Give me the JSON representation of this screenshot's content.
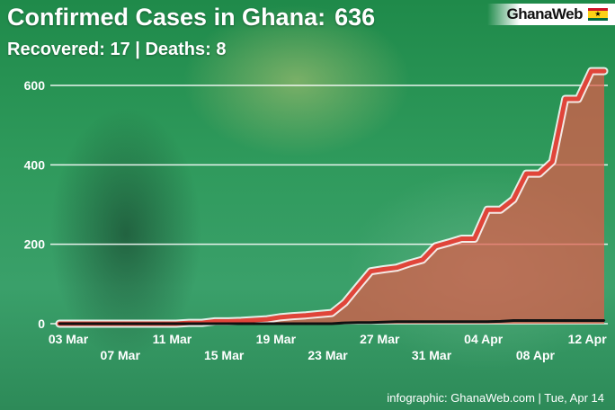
{
  "header": {
    "title": "Confirmed Cases in Ghana:",
    "title_value": "636",
    "subtitle": "Recovered: 17  |  Deaths: 8"
  },
  "brand": {
    "name": "GhanaWeb",
    "icon": "ghana-flag-icon"
  },
  "footer": {
    "credit": "infographic: GhanaWeb.com  |  Tue, Apr 14"
  },
  "colors": {
    "cases_line": "#e0453a",
    "cases_fill": "#e05a4a",
    "deaths_line": "#111111",
    "grid": "#ffffff"
  },
  "chart_data": {
    "type": "area",
    "x": [
      "03 Mar",
      "04 Mar",
      "05 Mar",
      "06 Mar",
      "07 Mar",
      "08 Mar",
      "09 Mar",
      "10 Mar",
      "11 Mar",
      "12 Mar",
      "13 Mar",
      "14 Mar",
      "15 Mar",
      "16 Mar",
      "17 Mar",
      "18 Mar",
      "19 Mar",
      "20 Mar",
      "21 Mar",
      "22 Mar",
      "23 Mar",
      "24 Mar",
      "25 Mar",
      "26 Mar",
      "27 Mar",
      "28 Mar",
      "29 Mar",
      "30 Mar",
      "31 Mar",
      "01 Apr",
      "02 Apr",
      "03 Apr",
      "04 Apr",
      "05 Apr",
      "06 Apr",
      "07 Apr",
      "08 Apr",
      "09 Apr",
      "10 Apr",
      "11 Apr",
      "12 Apr",
      "13 Apr",
      "14 Apr"
    ],
    "tick_labels_row1": [
      "03 Mar",
      "11 Mar",
      "19 Mar",
      "27 Mar",
      "04 Apr",
      "12 Apr"
    ],
    "tick_labels_row2": [
      "07 Mar",
      "15 Mar",
      "23 Mar",
      "31 Mar",
      "08 Apr"
    ],
    "yticks": [
      0,
      200,
      400,
      600
    ],
    "ylim": [
      0,
      650
    ],
    "grid": true,
    "series": [
      {
        "values": [
          0,
          0,
          0,
          0,
          0,
          0,
          0,
          0,
          0,
          0,
          2,
          2,
          6,
          6,
          7,
          9,
          11,
          16,
          19,
          21,
          24,
          27,
          53,
          93,
          132,
          137,
          141,
          152,
          161,
          195,
          204,
          214,
          214,
          287,
          287,
          313,
          378,
          378,
          408,
          566,
          566,
          636,
          636
        ]
      },
      {
        "values": [
          0,
          0,
          0,
          0,
          0,
          0,
          0,
          0,
          0,
          0,
          0,
          0,
          0,
          0,
          0,
          0,
          0,
          0,
          0,
          0,
          0,
          0,
          2,
          3,
          3,
          4,
          5,
          5,
          5,
          5,
          5,
          5,
          5,
          5,
          6,
          8,
          8,
          8,
          8,
          8,
          8,
          8,
          8
        ]
      }
    ]
  }
}
